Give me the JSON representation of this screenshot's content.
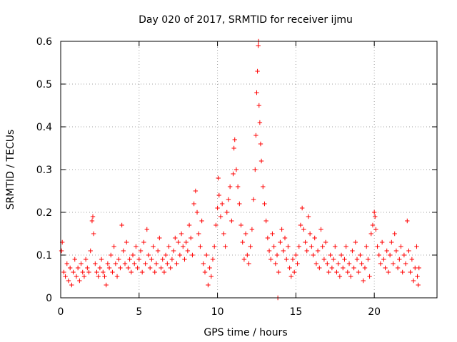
{
  "chart_data": {
    "type": "scatter",
    "title": "Day 020 of 2017, SRMTID for receiver ijmu",
    "xlabel": "GPS time / hours",
    "ylabel": "SRMTID / TECUs",
    "xlim": [
      0,
      24
    ],
    "ylim": [
      0,
      0.6
    ],
    "xticks": [
      0,
      5,
      10,
      15,
      20
    ],
    "xtick_labels": [
      "0",
      "5",
      "10",
      "15",
      "20"
    ],
    "yticks": [
      0,
      0.1,
      0.2,
      0.3,
      0.4,
      0.5,
      0.6
    ],
    "ytick_labels": [
      "0",
      "0.1",
      "0.2",
      "0.3",
      "0.4",
      "0.5",
      "0.6"
    ],
    "grid": true,
    "marker": "+",
    "color": "#ff0000",
    "series": [
      {
        "name": "SRMTID",
        "points": [
          [
            0.05,
            0.11
          ],
          [
            0.1,
            0.13
          ],
          [
            0.2,
            0.06
          ],
          [
            0.3,
            0.05
          ],
          [
            0.4,
            0.08
          ],
          [
            0.5,
            0.04
          ],
          [
            0.6,
            0.07
          ],
          [
            0.7,
            0.03
          ],
          [
            0.8,
            0.06
          ],
          [
            0.9,
            0.09
          ],
          [
            1.0,
            0.05
          ],
          [
            1.1,
            0.07
          ],
          [
            1.2,
            0.04
          ],
          [
            1.3,
            0.08
          ],
          [
            1.4,
            0.06
          ],
          [
            1.5,
            0.05
          ],
          [
            1.6,
            0.09
          ],
          [
            1.7,
            0.07
          ],
          [
            1.8,
            0.06
          ],
          [
            1.9,
            0.11
          ],
          [
            2.0,
            0.18
          ],
          [
            2.05,
            0.19
          ],
          [
            2.1,
            0.15
          ],
          [
            2.2,
            0.08
          ],
          [
            2.3,
            0.06
          ],
          [
            2.4,
            0.05
          ],
          [
            2.5,
            0.07
          ],
          [
            2.6,
            0.09
          ],
          [
            2.7,
            0.06
          ],
          [
            2.8,
            0.05
          ],
          [
            2.9,
            0.03
          ],
          [
            3.0,
            0.08
          ],
          [
            3.1,
            0.07
          ],
          [
            3.2,
            0.1
          ],
          [
            3.3,
            0.06
          ],
          [
            3.4,
            0.12
          ],
          [
            3.5,
            0.08
          ],
          [
            3.6,
            0.05
          ],
          [
            3.7,
            0.09
          ],
          [
            3.8,
            0.07
          ],
          [
            3.9,
            0.17
          ],
          [
            4.0,
            0.11
          ],
          [
            4.1,
            0.08
          ],
          [
            4.2,
            0.13
          ],
          [
            4.3,
            0.07
          ],
          [
            4.4,
            0.09
          ],
          [
            4.5,
            0.06
          ],
          [
            4.6,
            0.1
          ],
          [
            4.7,
            0.08
          ],
          [
            4.8,
            0.12
          ],
          [
            4.9,
            0.07
          ],
          [
            5.0,
            0.09
          ],
          [
            5.1,
            0.11
          ],
          [
            5.2,
            0.06
          ],
          [
            5.3,
            0.13
          ],
          [
            5.4,
            0.08
          ],
          [
            5.5,
            0.16
          ],
          [
            5.6,
            0.1
          ],
          [
            5.7,
            0.07
          ],
          [
            5.8,
            0.09
          ],
          [
            5.9,
            0.12
          ],
          [
            6.0,
            0.06
          ],
          [
            6.1,
            0.08
          ],
          [
            6.2,
            0.11
          ],
          [
            6.3,
            0.14
          ],
          [
            6.4,
            0.07
          ],
          [
            6.5,
            0.09
          ],
          [
            6.6,
            0.06
          ],
          [
            6.7,
            0.1
          ],
          [
            6.8,
            0.08
          ],
          [
            6.9,
            0.12
          ],
          [
            7.0,
            0.07
          ],
          [
            7.1,
            0.09
          ],
          [
            7.2,
            0.11
          ],
          [
            7.3,
            0.14
          ],
          [
            7.4,
            0.08
          ],
          [
            7.5,
            0.13
          ],
          [
            7.6,
            0.1
          ],
          [
            7.7,
            0.15
          ],
          [
            7.8,
            0.12
          ],
          [
            7.9,
            0.09
          ],
          [
            8.0,
            0.13
          ],
          [
            8.1,
            0.11
          ],
          [
            8.2,
            0.17
          ],
          [
            8.3,
            0.14
          ],
          [
            8.4,
            0.1
          ],
          [
            8.5,
            0.22
          ],
          [
            8.6,
            0.25
          ],
          [
            8.7,
            0.2
          ],
          [
            8.8,
            0.15
          ],
          [
            8.9,
            0.12
          ],
          [
            9.0,
            0.18
          ],
          [
            9.1,
            0.08
          ],
          [
            9.2,
            0.06
          ],
          [
            9.3,
            0.1
          ],
          [
            9.4,
            0.03
          ],
          [
            9.5,
            0.07
          ],
          [
            9.6,
            0.05
          ],
          [
            9.7,
            0.09
          ],
          [
            9.8,
            0.12
          ],
          [
            9.9,
            0.17
          ],
          [
            10.0,
            0.21
          ],
          [
            10.05,
            0.28
          ],
          [
            10.1,
            0.24
          ],
          [
            10.2,
            0.19
          ],
          [
            10.3,
            0.22
          ],
          [
            10.4,
            0.15
          ],
          [
            10.5,
            0.12
          ],
          [
            10.6,
            0.2
          ],
          [
            10.7,
            0.23
          ],
          [
            10.8,
            0.26
          ],
          [
            10.9,
            0.18
          ],
          [
            11.0,
            0.29
          ],
          [
            11.05,
            0.35
          ],
          [
            11.1,
            0.37
          ],
          [
            11.2,
            0.3
          ],
          [
            11.3,
            0.26
          ],
          [
            11.4,
            0.22
          ],
          [
            11.5,
            0.17
          ],
          [
            11.6,
            0.13
          ],
          [
            11.7,
            0.09
          ],
          [
            11.8,
            0.15
          ],
          [
            11.9,
            0.1
          ],
          [
            12.0,
            0.08
          ],
          [
            12.1,
            0.12
          ],
          [
            12.2,
            0.16
          ],
          [
            12.3,
            0.23
          ],
          [
            12.4,
            0.3
          ],
          [
            12.45,
            0.38
          ],
          [
            12.5,
            0.48
          ],
          [
            12.55,
            0.53
          ],
          [
            12.6,
            0.59
          ],
          [
            12.62,
            0.6
          ],
          [
            12.65,
            0.45
          ],
          [
            12.7,
            0.41
          ],
          [
            12.75,
            0.36
          ],
          [
            12.8,
            0.32
          ],
          [
            12.9,
            0.26
          ],
          [
            13.0,
            0.22
          ],
          [
            13.1,
            0.18
          ],
          [
            13.2,
            0.14
          ],
          [
            13.3,
            0.11
          ],
          [
            13.4,
            0.09
          ],
          [
            13.5,
            0.15
          ],
          [
            13.6,
            0.12
          ],
          [
            13.7,
            0.08
          ],
          [
            13.8,
            0.1
          ],
          [
            13.9,
            0.06
          ],
          [
            14.0,
            0.13
          ],
          [
            14.1,
            0.16
          ],
          [
            14.2,
            0.11
          ],
          [
            14.3,
            0.14
          ],
          [
            14.4,
            0.09
          ],
          [
            14.5,
            0.12
          ],
          [
            14.6,
            0.07
          ],
          [
            14.7,
            0.05
          ],
          [
            14.8,
            0.09
          ],
          [
            14.9,
            0.06
          ],
          [
            15.0,
            0.1
          ],
          [
            15.1,
            0.08
          ],
          [
            15.2,
            0.12
          ],
          [
            15.3,
            0.17
          ],
          [
            15.4,
            0.21
          ],
          [
            15.5,
            0.16
          ],
          [
            15.6,
            0.13
          ],
          [
            15.7,
            0.11
          ],
          [
            15.8,
            0.19
          ],
          [
            15.9,
            0.15
          ],
          [
            16.0,
            0.12
          ],
          [
            16.1,
            0.1
          ],
          [
            16.2,
            0.14
          ],
          [
            16.3,
            0.08
          ],
          [
            16.4,
            0.11
          ],
          [
            16.5,
            0.07
          ],
          [
            16.6,
            0.16
          ],
          [
            16.7,
            0.12
          ],
          [
            16.8,
            0.09
          ],
          [
            16.9,
            0.13
          ],
          [
            17.0,
            0.08
          ],
          [
            17.1,
            0.06
          ],
          [
            17.2,
            0.1
          ],
          [
            17.3,
            0.07
          ],
          [
            17.4,
            0.09
          ],
          [
            17.5,
            0.12
          ],
          [
            17.6,
            0.06
          ],
          [
            17.7,
            0.08
          ],
          [
            17.8,
            0.05
          ],
          [
            17.9,
            0.1
          ],
          [
            18.0,
            0.07
          ],
          [
            18.1,
            0.09
          ],
          [
            18.2,
            0.12
          ],
          [
            18.3,
            0.06
          ],
          [
            18.4,
            0.08
          ],
          [
            18.5,
            0.05
          ],
          [
            18.6,
            0.11
          ],
          [
            18.7,
            0.07
          ],
          [
            18.8,
            0.13
          ],
          [
            18.9,
            0.09
          ],
          [
            19.0,
            0.06
          ],
          [
            19.1,
            0.1
          ],
          [
            19.2,
            0.08
          ],
          [
            19.3,
            0.04
          ],
          [
            19.4,
            0.07
          ],
          [
            19.5,
            0.12
          ],
          [
            19.6,
            0.09
          ],
          [
            19.7,
            0.05
          ],
          [
            19.8,
            0.15
          ],
          [
            19.9,
            0.17
          ],
          [
            20.0,
            0.2
          ],
          [
            20.05,
            0.19
          ],
          [
            20.1,
            0.16
          ],
          [
            20.2,
            0.12
          ],
          [
            20.3,
            0.1
          ],
          [
            20.4,
            0.08
          ],
          [
            20.5,
            0.13
          ],
          [
            20.6,
            0.09
          ],
          [
            20.7,
            0.07
          ],
          [
            20.8,
            0.11
          ],
          [
            20.9,
            0.06
          ],
          [
            21.0,
            0.1
          ],
          [
            21.1,
            0.13
          ],
          [
            21.2,
            0.08
          ],
          [
            21.3,
            0.15
          ],
          [
            21.4,
            0.11
          ],
          [
            21.5,
            0.07
          ],
          [
            21.6,
            0.09
          ],
          [
            21.7,
            0.12
          ],
          [
            21.8,
            0.06
          ],
          [
            21.9,
            0.1
          ],
          [
            22.0,
            0.08
          ],
          [
            22.1,
            0.18
          ],
          [
            22.2,
            0.11
          ],
          [
            22.3,
            0.06
          ],
          [
            22.4,
            0.09
          ],
          [
            22.5,
            0.04
          ],
          [
            22.6,
            0.07
          ],
          [
            22.7,
            0.12
          ],
          [
            22.75,
            0.05
          ],
          [
            22.8,
            0.03
          ],
          [
            22.85,
            0.07
          ],
          [
            13.85,
            0.0
          ]
        ]
      }
    ]
  }
}
